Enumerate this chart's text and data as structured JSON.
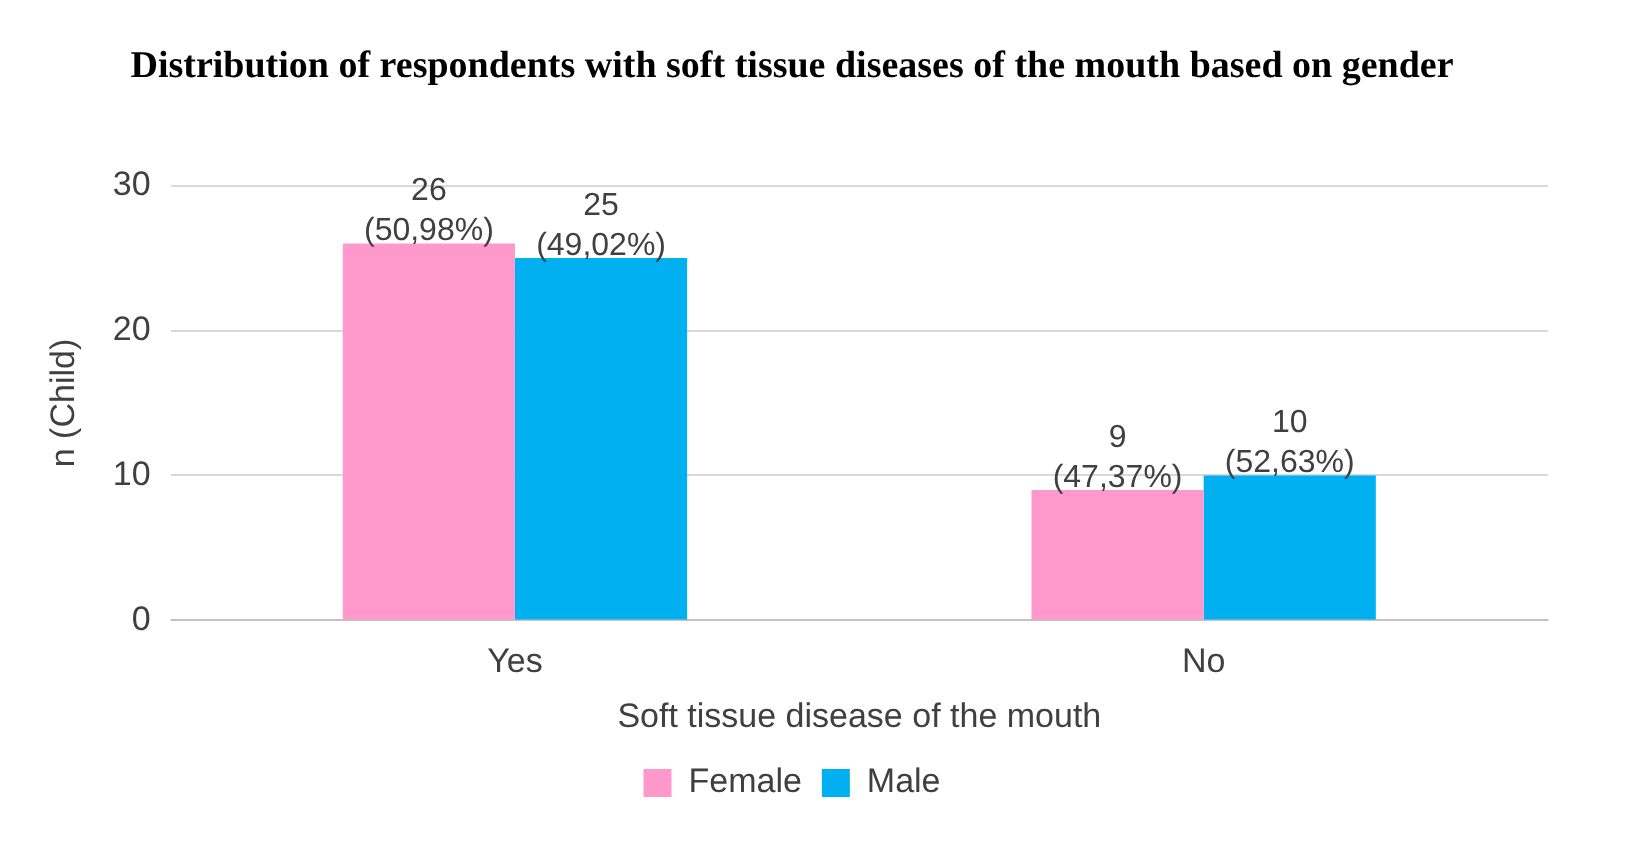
{
  "chart_data": {
    "type": "bar",
    "title": "Distribution of respondents with soft tissue diseases of the mouth based on gender",
    "xlabel": "Soft tissue disease of the mouth",
    "ylabel": "n (Child)",
    "categories": [
      "Yes",
      "No"
    ],
    "series": [
      {
        "name": "Female",
        "color": "#ff99cc",
        "values": [
          26,
          9
        ],
        "value_labels": [
          "26\n(50,98%)",
          "9\n(47,37%)"
        ]
      },
      {
        "name": "Male",
        "color": "#00b0f0",
        "values": [
          25,
          10
        ],
        "value_labels": [
          "25\n(49,02%)",
          "10\n(52,63%)"
        ]
      }
    ],
    "ylim": [
      0,
      30
    ],
    "yticks": [
      0,
      10,
      20,
      30
    ],
    "grid": "y",
    "legend": "bottom"
  }
}
